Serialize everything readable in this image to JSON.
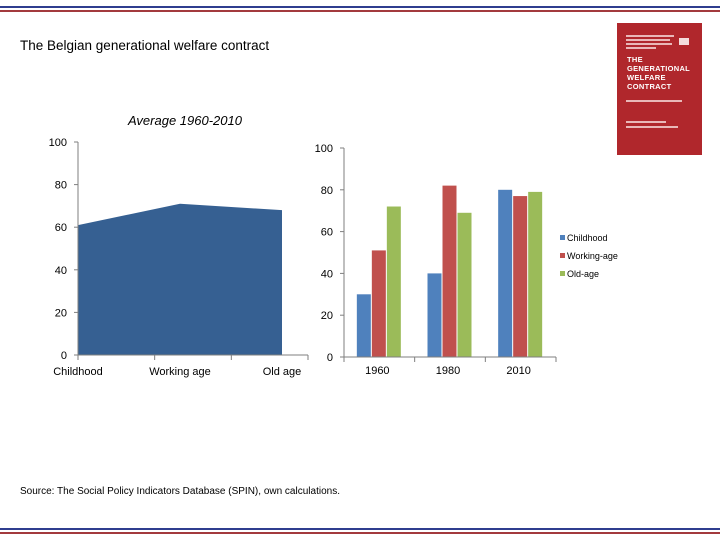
{
  "slide": {
    "title": "The Belgian generational welfare contract",
    "source": "Source: The Social Policy Indicators Database (SPIN), own calculations."
  },
  "book_cover": {
    "title": "THE\nGENERATIONAL\nWELFARE\nCONTRACT",
    "color": "#b0272c"
  },
  "chart_data": [
    {
      "type": "area",
      "title": "Average 1960-2010",
      "categories": [
        "Childhood",
        "Working age",
        "Old age"
      ],
      "values": [
        61,
        71,
        68
      ],
      "ylim": [
        0,
        100
      ],
      "yticks": [
        "0",
        "20",
        "40",
        "60",
        "80",
        "100"
      ],
      "color": "#366092",
      "grid": false
    },
    {
      "type": "bar",
      "categories": [
        "1960",
        "1980",
        "2010"
      ],
      "series": [
        {
          "name": "Childhood",
          "values": [
            30,
            40,
            80
          ],
          "color": "#4f81bd"
        },
        {
          "name": "Working-age",
          "values": [
            51,
            82,
            77
          ],
          "color": "#c0504d"
        },
        {
          "name": "Old-age",
          "values": [
            72,
            69,
            79
          ],
          "color": "#9bbb59"
        }
      ],
      "ylim": [
        0,
        100
      ],
      "yticks": [
        "0",
        "20",
        "40",
        "60",
        "80",
        "100"
      ],
      "legend": "right",
      "grid": false
    }
  ]
}
